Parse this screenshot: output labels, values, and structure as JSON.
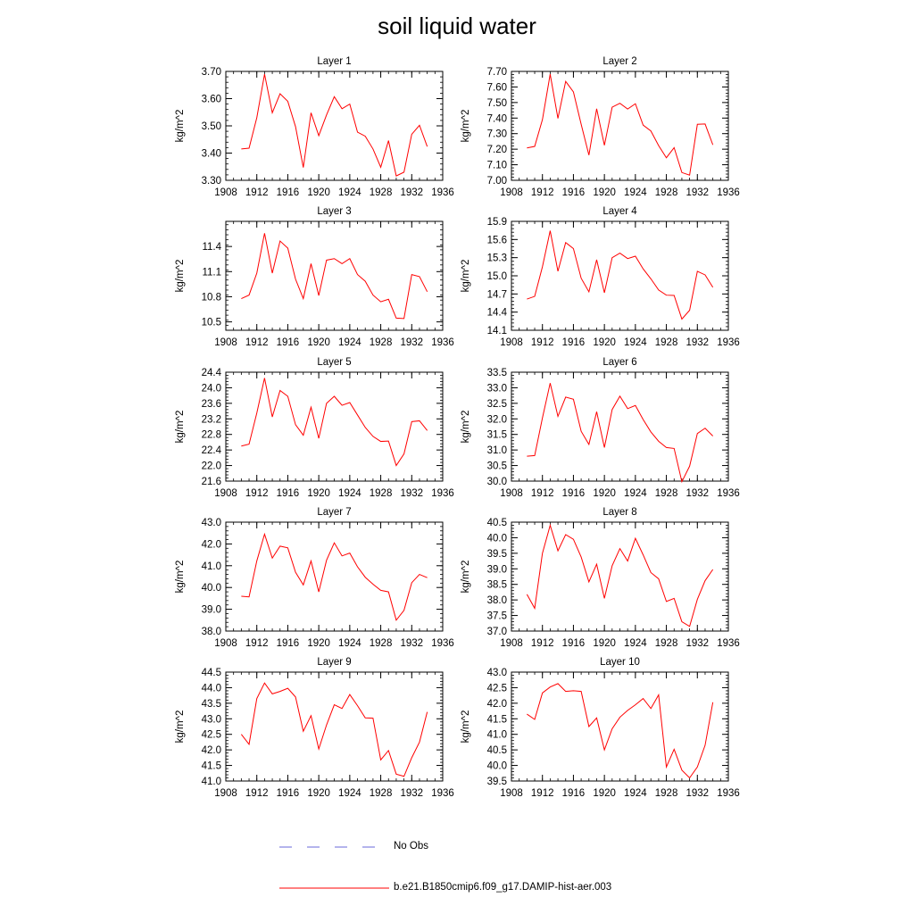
{
  "figure": {
    "title": "soil liquid water"
  },
  "legend": {
    "entries": [
      {
        "label": "No Obs",
        "color": "#6a6ad8",
        "style": "dashed"
      },
      {
        "label": "b.e21.B1850cmip6.f09_g17.DAMIP-hist-aer.003",
        "color": "#ff0000",
        "style": "solid"
      }
    ]
  },
  "chart_data": [
    {
      "type": "line",
      "title": "Layer 1",
      "ylabel": "kg/m^2",
      "xlim": [
        1908,
        1936
      ],
      "ylim": [
        3.3,
        3.7
      ],
      "xticks": [
        1908,
        1912,
        1916,
        1920,
        1924,
        1928,
        1932,
        1936
      ],
      "xtick_labels": [
        "1908",
        "1912",
        "1916",
        "1920",
        "1924",
        "1928",
        "1932",
        "1936"
      ],
      "yticks": [
        3.3,
        3.4,
        3.5,
        3.6,
        3.7
      ],
      "ytick_labels": [
        "3.30",
        "3.40",
        "3.50",
        "3.60",
        "3.70"
      ],
      "x": [
        1910,
        1911,
        1912,
        1913,
        1914,
        1915,
        1916,
        1917,
        1918,
        1919,
        1920,
        1921,
        1922,
        1923,
        1924,
        1925,
        1926,
        1927,
        1928,
        1929,
        1930,
        1931,
        1932,
        1933,
        1934
      ],
      "series": [
        {
          "color": "#ff0000",
          "values": [
            3.415,
            3.418,
            3.53,
            3.69,
            3.548,
            3.618,
            3.59,
            3.497,
            3.347,
            3.548,
            3.464,
            3.54,
            3.607,
            3.563,
            3.58,
            3.477,
            3.462,
            3.415,
            3.348,
            3.446,
            3.316,
            3.33,
            3.469,
            3.502,
            3.424
          ]
        }
      ]
    },
    {
      "type": "line",
      "title": "Layer 2",
      "ylabel": "kg/m^2",
      "xlim": [
        1908,
        1936
      ],
      "ylim": [
        7.0,
        7.7
      ],
      "xticks": [
        1908,
        1912,
        1916,
        1920,
        1924,
        1928,
        1932,
        1936
      ],
      "xtick_labels": [
        "1908",
        "1912",
        "1916",
        "1920",
        "1924",
        "1928",
        "1932",
        "1936"
      ],
      "yticks": [
        7.0,
        7.1,
        7.2,
        7.3,
        7.4,
        7.5,
        7.6,
        7.7
      ],
      "ytick_labels": [
        "7.00",
        "7.10",
        "7.20",
        "7.30",
        "7.40",
        "7.50",
        "7.60",
        "7.70"
      ],
      "x": [
        1910,
        1911,
        1912,
        1913,
        1914,
        1915,
        1916,
        1917,
        1918,
        1919,
        1920,
        1921,
        1922,
        1923,
        1924,
        1925,
        1926,
        1927,
        1928,
        1929,
        1930,
        1931,
        1932,
        1933,
        1934
      ],
      "series": [
        {
          "color": "#ff0000",
          "values": [
            7.208,
            7.218,
            7.39,
            7.682,
            7.398,
            7.636,
            7.568,
            7.36,
            7.162,
            7.46,
            7.225,
            7.47,
            7.495,
            7.458,
            7.492,
            7.355,
            7.317,
            7.223,
            7.145,
            7.21,
            7.05,
            7.033,
            7.36,
            7.362,
            7.228
          ]
        }
      ]
    },
    {
      "type": "line",
      "title": "Layer 3",
      "ylabel": "kg/m^2",
      "xlim": [
        1908,
        1936
      ],
      "ylim": [
        10.4,
        11.7
      ],
      "xticks": [
        1908,
        1912,
        1916,
        1920,
        1924,
        1928,
        1932,
        1936
      ],
      "xtick_labels": [
        "1908",
        "1912",
        "1916",
        "1920",
        "1924",
        "1928",
        "1932",
        "1936"
      ],
      "yticks": [
        10.5,
        10.8,
        11.1,
        11.4
      ],
      "ytick_labels": [
        "10.5",
        "10.8",
        "11.1",
        "11.4"
      ],
      "x": [
        1910,
        1911,
        1912,
        1913,
        1914,
        1915,
        1916,
        1917,
        1918,
        1919,
        1920,
        1921,
        1922,
        1923,
        1924,
        1925,
        1926,
        1927,
        1928,
        1929,
        1930,
        1931,
        1932,
        1933,
        1934
      ],
      "series": [
        {
          "color": "#ff0000",
          "values": [
            10.778,
            10.82,
            11.082,
            11.558,
            11.082,
            11.465,
            11.38,
            11.01,
            10.778,
            11.195,
            10.814,
            11.237,
            11.255,
            11.195,
            11.255,
            11.065,
            10.985,
            10.82,
            10.74,
            10.77,
            10.545,
            10.54,
            11.065,
            11.04,
            10.86
          ]
        }
      ]
    },
    {
      "type": "line",
      "title": "Layer 4",
      "ylabel": "kg/m^2",
      "xlim": [
        1908,
        1936
      ],
      "ylim": [
        14.1,
        15.9
      ],
      "xticks": [
        1908,
        1912,
        1916,
        1920,
        1924,
        1928,
        1932,
        1936
      ],
      "xtick_labels": [
        "1908",
        "1912",
        "1916",
        "1920",
        "1924",
        "1928",
        "1932",
        "1936"
      ],
      "yticks": [
        14.1,
        14.4,
        14.7,
        15.0,
        15.3,
        15.6,
        15.9
      ],
      "ytick_labels": [
        "14.1",
        "14.4",
        "14.7",
        "15.0",
        "15.3",
        "15.6",
        "15.9"
      ],
      "x": [
        1910,
        1911,
        1912,
        1913,
        1914,
        1915,
        1916,
        1917,
        1918,
        1919,
        1920,
        1921,
        1922,
        1923,
        1924,
        1925,
        1926,
        1927,
        1928,
        1929,
        1930,
        1931,
        1932,
        1933,
        1934
      ],
      "series": [
        {
          "color": "#ff0000",
          "values": [
            14.615,
            14.66,
            15.15,
            15.745,
            15.075,
            15.55,
            15.45,
            14.96,
            14.735,
            15.265,
            14.72,
            15.3,
            15.375,
            15.285,
            15.325,
            15.115,
            14.95,
            14.765,
            14.68,
            14.675,
            14.285,
            14.43,
            15.075,
            15.015,
            14.81
          ]
        }
      ]
    },
    {
      "type": "line",
      "title": "Layer 5",
      "ylabel": "kg/m^2",
      "xlim": [
        1908,
        1936
      ],
      "ylim": [
        21.6,
        24.4
      ],
      "xticks": [
        1908,
        1912,
        1916,
        1920,
        1924,
        1928,
        1932,
        1936
      ],
      "xtick_labels": [
        "1908",
        "1912",
        "1916",
        "1920",
        "1924",
        "1928",
        "1932",
        "1936"
      ],
      "yticks": [
        21.6,
        22.0,
        22.4,
        22.8,
        23.2,
        23.6,
        24.0,
        24.4
      ],
      "ytick_labels": [
        "21.6",
        "22.0",
        "22.4",
        "22.8",
        "23.2",
        "23.6",
        "24.0",
        "24.4"
      ],
      "x": [
        1910,
        1911,
        1912,
        1913,
        1914,
        1915,
        1916,
        1917,
        1918,
        1919,
        1920,
        1921,
        1922,
        1923,
        1924,
        1925,
        1926,
        1927,
        1928,
        1929,
        1930,
        1931,
        1932,
        1933,
        1934
      ],
      "series": [
        {
          "color": "#ff0000",
          "values": [
            22.5,
            22.55,
            23.35,
            24.25,
            23.25,
            23.93,
            23.78,
            23.05,
            22.78,
            23.5,
            22.7,
            23.6,
            23.78,
            23.55,
            23.62,
            23.3,
            22.98,
            22.75,
            22.62,
            22.63,
            22.0,
            22.3,
            23.13,
            23.15,
            22.9
          ]
        }
      ]
    },
    {
      "type": "line",
      "title": "Layer 6",
      "ylabel": "kg/m^2",
      "xlim": [
        1908,
        1936
      ],
      "ylim": [
        30.0,
        33.5
      ],
      "xticks": [
        1908,
        1912,
        1916,
        1920,
        1924,
        1928,
        1932,
        1936
      ],
      "xtick_labels": [
        "1908",
        "1912",
        "1916",
        "1920",
        "1924",
        "1928",
        "1932",
        "1936"
      ],
      "yticks": [
        30.0,
        30.5,
        31.0,
        31.5,
        32.0,
        32.5,
        33.0,
        33.5
      ],
      "ytick_labels": [
        "30.0",
        "30.5",
        "31.0",
        "31.5",
        "32.0",
        "32.5",
        "33.0",
        "33.5"
      ],
      "x": [
        1910,
        1911,
        1912,
        1913,
        1914,
        1915,
        1916,
        1917,
        1918,
        1919,
        1920,
        1921,
        1922,
        1923,
        1924,
        1925,
        1926,
        1927,
        1928,
        1929,
        1930,
        1931,
        1932,
        1933,
        1934
      ],
      "series": [
        {
          "color": "#ff0000",
          "values": [
            30.8,
            30.82,
            32.03,
            33.15,
            32.08,
            32.7,
            32.63,
            31.6,
            31.18,
            32.23,
            31.08,
            32.3,
            32.73,
            32.33,
            32.43,
            31.98,
            31.58,
            31.28,
            31.08,
            31.05,
            29.98,
            30.48,
            31.53,
            31.7,
            31.45
          ]
        }
      ]
    },
    {
      "type": "line",
      "title": "Layer 7",
      "ylabel": "kg/m^2",
      "xlim": [
        1908,
        1936
      ],
      "ylim": [
        38.0,
        43.0
      ],
      "xticks": [
        1908,
        1912,
        1916,
        1920,
        1924,
        1928,
        1932,
        1936
      ],
      "xtick_labels": [
        "1908",
        "1912",
        "1916",
        "1920",
        "1924",
        "1928",
        "1932",
        "1936"
      ],
      "yticks": [
        38.0,
        39.0,
        40.0,
        41.0,
        42.0,
        43.0
      ],
      "ytick_labels": [
        "38.0",
        "39.0",
        "40.0",
        "41.0",
        "42.0",
        "43.0"
      ],
      "x": [
        1910,
        1911,
        1912,
        1913,
        1914,
        1915,
        1916,
        1917,
        1918,
        1919,
        1920,
        1921,
        1922,
        1923,
        1924,
        1925,
        1926,
        1927,
        1928,
        1929,
        1930,
        1931,
        1932,
        1933,
        1934
      ],
      "series": [
        {
          "color": "#ff0000",
          "values": [
            39.6,
            39.57,
            41.22,
            42.45,
            41.35,
            41.9,
            41.82,
            40.7,
            40.12,
            41.22,
            39.8,
            41.25,
            42.05,
            41.45,
            41.58,
            40.95,
            40.47,
            40.15,
            39.87,
            39.8,
            38.5,
            38.95,
            40.22,
            40.6,
            40.45
          ]
        }
      ]
    },
    {
      "type": "line",
      "title": "Layer 8",
      "ylabel": "kg/m^2",
      "xlim": [
        1908,
        1936
      ],
      "ylim": [
        37.0,
        40.5
      ],
      "xticks": [
        1908,
        1912,
        1916,
        1920,
        1924,
        1928,
        1932,
        1936
      ],
      "xtick_labels": [
        "1908",
        "1912",
        "1916",
        "1920",
        "1924",
        "1928",
        "1932",
        "1936"
      ],
      "yticks": [
        37.0,
        37.5,
        38.0,
        38.5,
        39.0,
        39.5,
        40.0,
        40.5
      ],
      "ytick_labels": [
        "37.0",
        "37.5",
        "38.0",
        "38.5",
        "39.0",
        "39.5",
        "40.0",
        "40.5"
      ],
      "x": [
        1910,
        1911,
        1912,
        1913,
        1914,
        1915,
        1916,
        1917,
        1918,
        1919,
        1920,
        1921,
        1922,
        1923,
        1924,
        1925,
        1926,
        1927,
        1928,
        1929,
        1930,
        1931,
        1932,
        1933,
        1934
      ],
      "series": [
        {
          "color": "#ff0000",
          "values": [
            38.18,
            37.73,
            39.5,
            40.4,
            39.58,
            40.1,
            39.95,
            39.38,
            38.58,
            39.15,
            38.05,
            39.1,
            39.65,
            39.25,
            39.98,
            39.45,
            38.88,
            38.68,
            37.95,
            38.05,
            37.3,
            37.15,
            38.02,
            38.62,
            38.98
          ]
        }
      ]
    },
    {
      "type": "line",
      "title": "Layer 9",
      "ylabel": "kg/m^2",
      "xlim": [
        1908,
        1936
      ],
      "ylim": [
        41.0,
        44.5
      ],
      "xticks": [
        1908,
        1912,
        1916,
        1920,
        1924,
        1928,
        1932,
        1936
      ],
      "xtick_labels": [
        "1908",
        "1912",
        "1916",
        "1920",
        "1924",
        "1928",
        "1932",
        "1936"
      ],
      "yticks": [
        41.0,
        41.5,
        42.0,
        42.5,
        43.0,
        43.5,
        44.0,
        44.5
      ],
      "ytick_labels": [
        "41.0",
        "41.5",
        "42.0",
        "42.5",
        "43.0",
        "43.5",
        "44.0",
        "44.5"
      ],
      "x": [
        1910,
        1911,
        1912,
        1913,
        1914,
        1915,
        1916,
        1917,
        1918,
        1919,
        1920,
        1921,
        1922,
        1923,
        1924,
        1925,
        1926,
        1927,
        1928,
        1929,
        1930,
        1931,
        1932,
        1933,
        1934
      ],
      "series": [
        {
          "color": "#ff0000",
          "values": [
            42.5,
            42.18,
            43.65,
            44.15,
            43.8,
            43.88,
            43.98,
            43.7,
            42.6,
            43.1,
            42.03,
            42.8,
            43.45,
            43.33,
            43.78,
            43.42,
            43.03,
            43.02,
            41.68,
            41.98,
            41.22,
            41.15,
            41.75,
            42.25,
            43.22
          ]
        }
      ]
    },
    {
      "type": "line",
      "title": "Layer 10",
      "ylabel": "kg/m^2",
      "xlim": [
        1908,
        1936
      ],
      "ylim": [
        39.5,
        43.0
      ],
      "xticks": [
        1908,
        1912,
        1916,
        1920,
        1924,
        1928,
        1932,
        1936
      ],
      "xtick_labels": [
        "1908",
        "1912",
        "1916",
        "1920",
        "1924",
        "1928",
        "1932",
        "1936"
      ],
      "yticks": [
        39.5,
        40.0,
        40.5,
        41.0,
        41.5,
        42.0,
        42.5,
        43.0
      ],
      "ytick_labels": [
        "39.5",
        "40.0",
        "40.5",
        "41.0",
        "41.5",
        "42.0",
        "42.5",
        "43.0"
      ],
      "x": [
        1910,
        1911,
        1912,
        1913,
        1914,
        1915,
        1916,
        1917,
        1918,
        1919,
        1920,
        1921,
        1922,
        1923,
        1924,
        1925,
        1926,
        1927,
        1928,
        1929,
        1930,
        1931,
        1932,
        1933,
        1934
      ],
      "series": [
        {
          "color": "#ff0000",
          "values": [
            41.65,
            41.48,
            42.33,
            42.52,
            42.63,
            42.38,
            42.4,
            42.38,
            41.25,
            41.53,
            40.5,
            41.18,
            41.55,
            41.77,
            41.95,
            42.15,
            41.83,
            42.27,
            39.95,
            40.52,
            39.85,
            39.6,
            39.95,
            40.65,
            42.03
          ]
        }
      ]
    }
  ]
}
